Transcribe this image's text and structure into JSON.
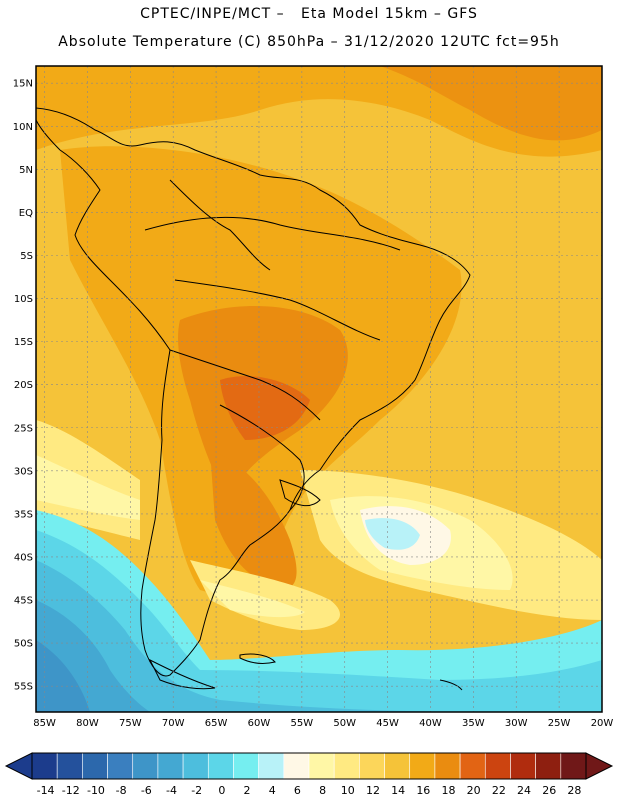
{
  "header": {
    "line1": "CPTEC/INPE/MCT –   Eta Model 15km – GFS",
    "line2": "Absolute Temperature (C) 850hPa – 31/12/2020 12UTC fct=95h"
  },
  "map": {
    "lon_range": [
      -86,
      -20
    ],
    "lat_range": [
      -58,
      17
    ],
    "lat_labels": [
      "15N",
      "10N",
      "5N",
      "EQ",
      "5S",
      "10S",
      "15S",
      "20S",
      "25S",
      "30S",
      "35S",
      "40S",
      "45S",
      "50S",
      "55S"
    ],
    "lat_values": [
      15,
      10,
      5,
      0,
      -5,
      -10,
      -15,
      -20,
      -25,
      -30,
      -35,
      -40,
      -45,
      -50,
      -55
    ],
    "lon_labels": [
      "85W",
      "80W",
      "75W",
      "70W",
      "65W",
      "60W",
      "55W",
      "50W",
      "45W",
      "40W",
      "35W",
      "30W",
      "25W",
      "20W"
    ],
    "lon_values": [
      -85,
      -80,
      -75,
      -70,
      -65,
      -60,
      -55,
      -50,
      -45,
      -40,
      -35,
      -30,
      -25,
      -20
    ],
    "grid": true
  },
  "colorbar": {
    "labels": [
      "-14",
      "-12",
      "-10",
      "-8",
      "-6",
      "-4",
      "-2",
      "0",
      "2",
      "4",
      "6",
      "8",
      "10",
      "12",
      "14",
      "16",
      "18",
      "20",
      "22",
      "24",
      "26",
      "28"
    ],
    "colors": [
      "#1c3c8c",
      "#24519c",
      "#2c68ac",
      "#3a7fbf",
      "#3e95c8",
      "#44a8d2",
      "#4dbedd",
      "#5cd6e8",
      "#75eef0",
      "#b8f2f8",
      "#fff8e6",
      "#fff7a6",
      "#ffea82",
      "#fcd65a",
      "#f5c339",
      "#f2aa17",
      "#ea8c10",
      "#e26414",
      "#cc4410",
      "#b02c0e",
      "#8e1f10",
      "#701818"
    ],
    "left_arrow_color": "#1c3c8c",
    "right_arrow_color": "#701818"
  }
}
